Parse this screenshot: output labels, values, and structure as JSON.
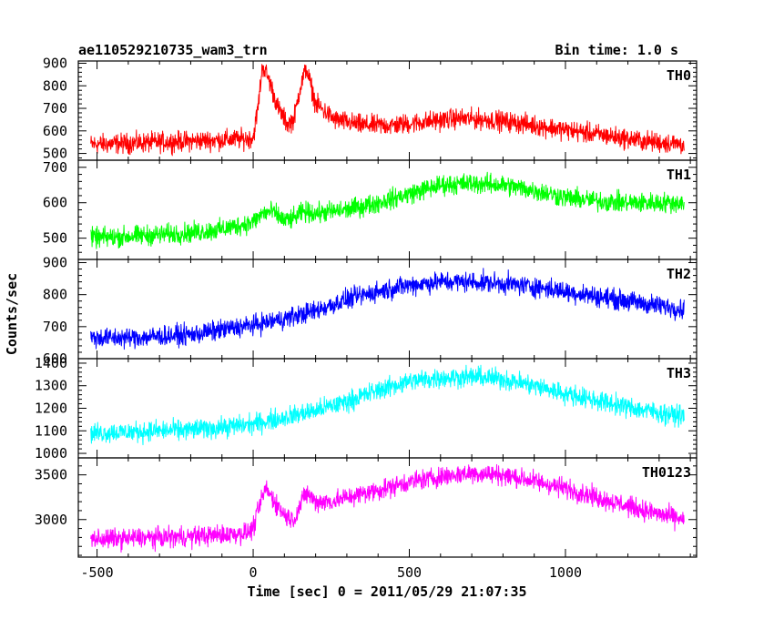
{
  "header": {
    "title": "ae110529210735_wam3_trn",
    "bin_time": "Bin time: 1.0 s"
  },
  "chart_data": {
    "type": "line",
    "title": "ae110529210735_wam3_trn",
    "subtitle": "Bin time: 1.0 s",
    "xlabel": "Time [sec] 0 = 2011/05/29 21:07:35",
    "ylabel": "Counts/sec",
    "xlim": [
      -560,
      1420
    ],
    "x_ticks": [
      -500,
      0,
      500,
      1000
    ],
    "panels": [
      {
        "name": "TH0",
        "color": "#ff0000",
        "ylim": [
          470,
          910
        ],
        "y_ticks": [
          500,
          600,
          700,
          800,
          900
        ],
        "x": [
          -520,
          -400,
          -300,
          -200,
          -100,
          -20,
          0,
          15,
          30,
          50,
          80,
          110,
          130,
          150,
          170,
          200,
          260,
          350,
          450,
          550,
          650,
          750,
          850,
          950,
          1050,
          1150,
          1250,
          1380
        ],
        "values": [
          540,
          545,
          550,
          555,
          560,
          565,
          570,
          700,
          890,
          830,
          700,
          630,
          650,
          790,
          880,
          720,
          650,
          625,
          625,
          640,
          655,
          650,
          635,
          615,
          595,
          575,
          555,
          540
        ]
      },
      {
        "name": "TH1",
        "color": "#00ff00",
        "ylim": [
          440,
          720
        ],
        "y_ticks": [
          500,
          600,
          700
        ],
        "x": [
          -520,
          -400,
          -300,
          -200,
          -100,
          0,
          30,
          60,
          100,
          130,
          160,
          200,
          300,
          400,
          500,
          600,
          700,
          800,
          900,
          1000,
          1100,
          1200,
          1300,
          1380
        ],
        "values": [
          500,
          505,
          510,
          515,
          525,
          545,
          570,
          575,
          550,
          555,
          575,
          570,
          580,
          600,
          625,
          650,
          655,
          650,
          635,
          615,
          605,
          600,
          600,
          600
        ]
      },
      {
        "name": "TH2",
        "color": "#0000ff",
        "ylim": [
          600,
          910
        ],
        "y_ticks": [
          600,
          700,
          800,
          900
        ],
        "x": [
          -520,
          -400,
          -300,
          -200,
          -100,
          0,
          100,
          200,
          300,
          400,
          500,
          600,
          700,
          800,
          900,
          1000,
          1100,
          1200,
          1300,
          1380
        ],
        "values": [
          665,
          665,
          670,
          675,
          690,
          705,
          725,
          750,
          785,
          810,
          830,
          840,
          840,
          835,
          825,
          810,
          795,
          780,
          765,
          755
        ]
      },
      {
        "name": "TH3",
        "color": "#00ffff",
        "ylim": [
          980,
          1420
        ],
        "y_ticks": [
          1000,
          1100,
          1200,
          1300,
          1400
        ],
        "x": [
          -520,
          -400,
          -300,
          -200,
          -100,
          0,
          100,
          200,
          300,
          400,
          500,
          600,
          700,
          800,
          900,
          1000,
          1100,
          1200,
          1300,
          1380
        ],
        "values": [
          1090,
          1095,
          1100,
          1105,
          1115,
          1130,
          1160,
          1190,
          1230,
          1280,
          1320,
          1335,
          1340,
          1330,
          1300,
          1265,
          1235,
          1205,
          1180,
          1165
        ]
      },
      {
        "name": "TH0123",
        "color": "#ff00ff",
        "ylim": [
          2580,
          3690
        ],
        "y_ticks": [
          3000,
          3500
        ],
        "x": [
          -520,
          -400,
          -300,
          -200,
          -100,
          -20,
          0,
          20,
          40,
          70,
          100,
          130,
          150,
          170,
          200,
          250,
          300,
          400,
          500,
          600,
          700,
          800,
          900,
          1000,
          1100,
          1200,
          1300,
          1380
        ],
        "values": [
          2780,
          2790,
          2800,
          2810,
          2830,
          2850,
          2900,
          3150,
          3350,
          3200,
          3050,
          3000,
          3150,
          3300,
          3200,
          3200,
          3250,
          3330,
          3420,
          3480,
          3520,
          3500,
          3430,
          3350,
          3250,
          3150,
          3060,
          3000
        ]
      }
    ]
  }
}
